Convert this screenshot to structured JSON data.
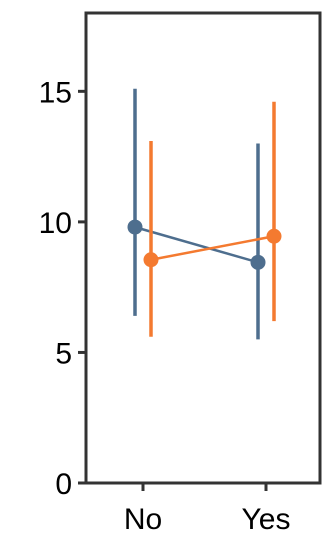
{
  "chart_data": {
    "type": "line",
    "categories": [
      "No",
      "Yes"
    ],
    "ylim": [
      0,
      18
    ],
    "yticks": [
      0,
      5,
      10,
      15
    ],
    "grid": false,
    "legend": "none",
    "series": [
      {
        "color": "#4e6e8e",
        "values": [
          9.8,
          8.45
        ],
        "lower": [
          6.4,
          5.5
        ],
        "upper": [
          15.1,
          13.0
        ]
      },
      {
        "color": "#f47a30",
        "values": [
          8.55,
          9.45
        ],
        "lower": [
          5.6,
          6.2
        ],
        "upper": [
          13.1,
          14.6
        ]
      }
    ]
  }
}
